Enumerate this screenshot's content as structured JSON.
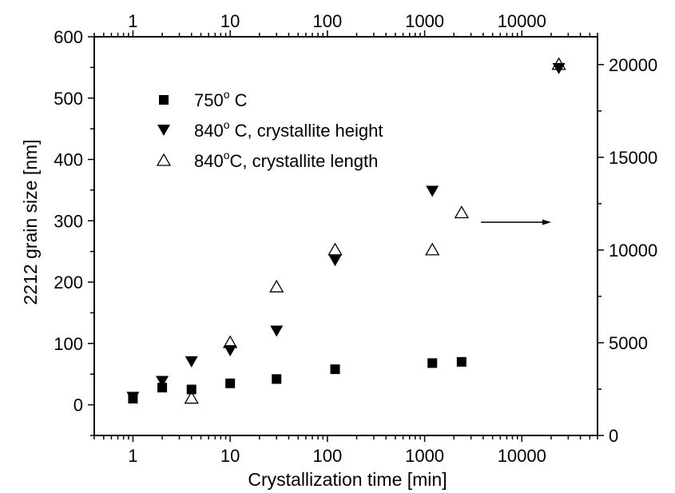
{
  "chart_data": {
    "type": "scatter",
    "xlabel": "Crystallization time [min]",
    "ylabel": "2212 grain size [nm]",
    "x_scale": "log",
    "xlim": [
      0.4,
      60000
    ],
    "ylim": [
      -50,
      600
    ],
    "y2lim": [
      0,
      21500
    ],
    "x_ticks": [
      1,
      10,
      100,
      1000,
      10000
    ],
    "x_tick_labels": [
      "1",
      "10",
      "100",
      "1000",
      "10000"
    ],
    "x2_tick_labels": [
      "1",
      "10",
      "100",
      "1000",
      "10000"
    ],
    "y_ticks": [
      0,
      100,
      200,
      300,
      400,
      500,
      600
    ],
    "y_tick_labels": [
      "0",
      "100",
      "200",
      "300",
      "400",
      "500",
      "600"
    ],
    "y2_ticks": [
      0,
      5000,
      10000,
      15000,
      20000
    ],
    "y2_tick_labels": [
      "0",
      "5000",
      "10000",
      "15000",
      "20000"
    ],
    "grid": false,
    "legend_position": "top-left",
    "colors": {
      "marker": "#000000",
      "axis": "#000000"
    },
    "series": [
      {
        "name": "750° C",
        "label_main": "750",
        "label_sup": "o",
        "label_tail": " C",
        "marker": "filled-square",
        "axis": "left",
        "x": [
          1,
          2,
          4,
          10,
          30,
          120,
          1200,
          2400
        ],
        "y": [
          10,
          28,
          25,
          35,
          42,
          58,
          68,
          70
        ]
      },
      {
        "name": "840° C, crystallite height",
        "label_main": "840",
        "label_sup": "o",
        "label_tail": " C, crystallite height",
        "marker": "filled-triangle-down",
        "axis": "left",
        "x": [
          1,
          2,
          4,
          10,
          30,
          120,
          1200,
          24000
        ],
        "y": [
          12,
          38,
          70,
          88,
          120,
          235,
          348,
          548
        ]
      },
      {
        "name": "840°C, crystallite length",
        "label_main": "840",
        "label_sup": "o",
        "label_tail": "C, crystallite length",
        "marker": "open-triangle-up",
        "axis": "right",
        "x": [
          4,
          10,
          30,
          120,
          1200,
          2400,
          24000
        ],
        "y": [
          2000,
          5000,
          8000,
          10000,
          10000,
          12000,
          20000
        ]
      }
    ],
    "annotations": [
      {
        "type": "arrow",
        "direction": "right",
        "meaning": "length series uses right axis",
        "x_from": 3800,
        "x_to": 20000,
        "y2": 11500
      }
    ]
  }
}
